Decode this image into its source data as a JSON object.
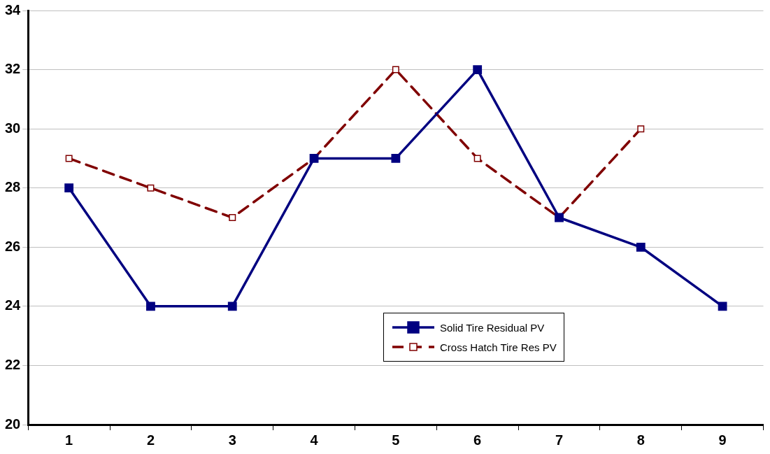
{
  "chart_data": {
    "type": "line",
    "categories": [
      "1",
      "2",
      "3",
      "4",
      "5",
      "6",
      "7",
      "8",
      "9"
    ],
    "series": [
      {
        "name": "Solid Tire Residual PV",
        "color": "#000080",
        "values": [
          28,
          24,
          24,
          29,
          29,
          32,
          27,
          26,
          24
        ],
        "line_style": "solid",
        "marker": "square"
      },
      {
        "name": "Cross Hatch Tire Res PV",
        "color": "#800000",
        "values": [
          29,
          28,
          27,
          29,
          32,
          29,
          27,
          30,
          null
        ],
        "line_style": "dashed",
        "marker": "square"
      }
    ],
    "ylim": [
      20,
      34
    ],
    "yticks": [
      20,
      22,
      24,
      26,
      28,
      30,
      32,
      34
    ],
    "grid": "y",
    "legend": "bottom right"
  }
}
